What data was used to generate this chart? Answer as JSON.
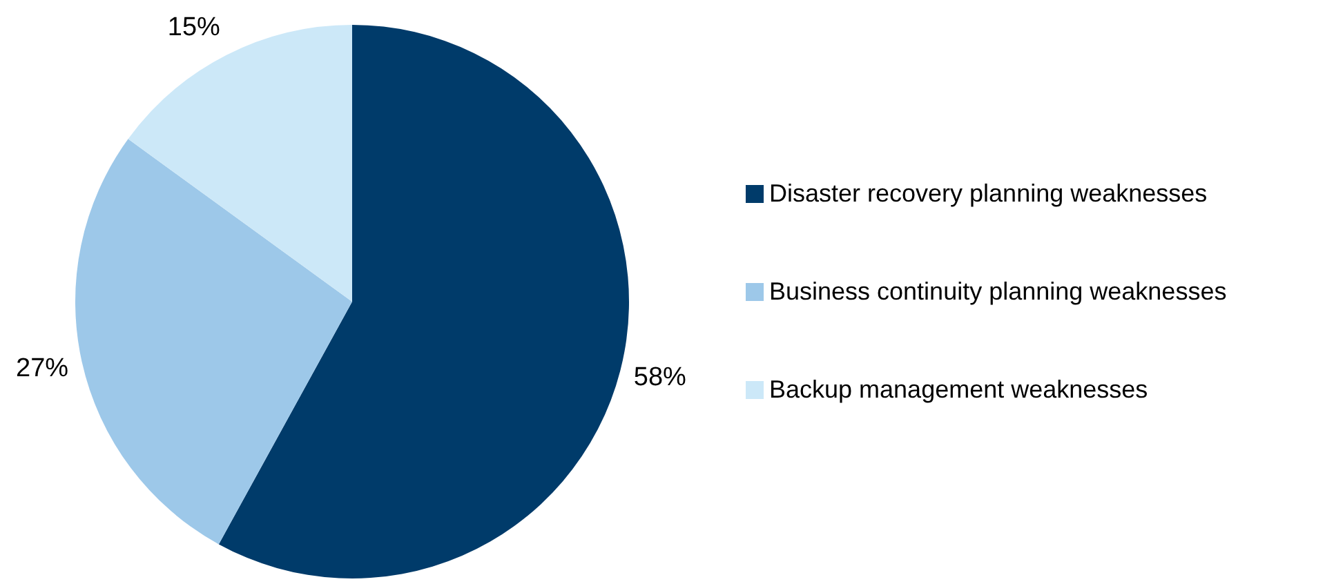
{
  "chart_data": {
    "type": "pie",
    "categories": [
      "Disaster recovery planning weaknesses",
      "Business continuity planning weaknesses",
      "Backup management weaknesses"
    ],
    "values": [
      58,
      27,
      15
    ],
    "colors": [
      "#003b6a",
      "#9dc8e9",
      "#cce8f8"
    ],
    "value_labels": [
      "58%",
      "27%",
      "15%"
    ],
    "legend": "right"
  }
}
